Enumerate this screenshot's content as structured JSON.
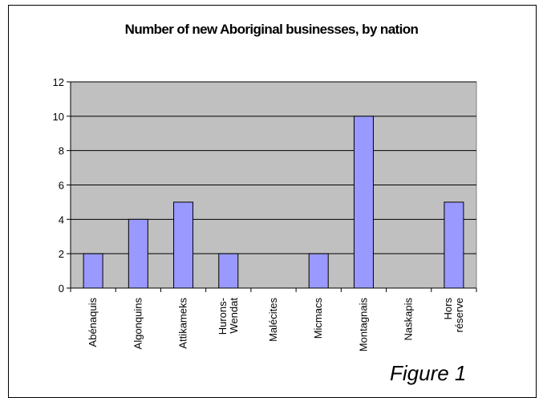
{
  "chart_data": {
    "type": "bar",
    "title": "Number of new Aboriginal businesses, by nation",
    "categories": [
      "Abénaquis",
      "Algonquins",
      "Attikameks",
      "Hurons-\nWendat",
      "Malécites",
      "Micmacs",
      "Montagnais",
      "Naskapis",
      "Hors\nréserve"
    ],
    "values": [
      2,
      4,
      5,
      2,
      0,
      2,
      10,
      0,
      5
    ],
    "ylim": [
      0,
      12
    ],
    "yticks": [
      0,
      2,
      4,
      6,
      8,
      10,
      12
    ],
    "grid": true,
    "xlabel": "",
    "ylabel": "",
    "colors": {
      "bar": "#9999ff",
      "plot_background": "#c0c0c0",
      "bar_border": "#000000"
    }
  },
  "caption": "Figure 1"
}
